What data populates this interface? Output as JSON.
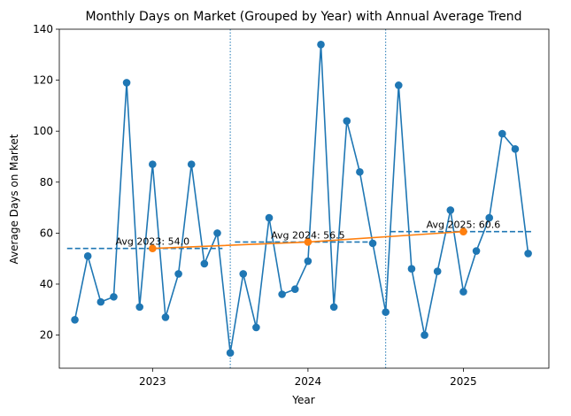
{
  "chart_data": {
    "type": "line",
    "title": "Monthly Days on Market (Grouped by Year) with Annual Average Trend",
    "xlabel": "Year",
    "ylabel": "Average Days on Market",
    "xlim": [
      2022.4,
      2025.55
    ],
    "ylim": [
      7,
      140
    ],
    "yticks": [
      20,
      40,
      60,
      80,
      100,
      120,
      140
    ],
    "xticks": [
      2023,
      2024,
      2025
    ],
    "xtick_labels": [
      "2023",
      "2024",
      "2025"
    ],
    "grid": false,
    "colors": {
      "monthly": "#1f77b4",
      "trend": "#ff7f0e"
    },
    "monthly_series": {
      "x": [
        2022.5,
        2022.5833,
        2022.6667,
        2022.75,
        2022.8333,
        2022.9167,
        2023.0,
        2023.0833,
        2023.1667,
        2023.25,
        2023.3333,
        2023.4167,
        2023.5,
        2023.5833,
        2023.6667,
        2023.75,
        2023.8333,
        2023.9167,
        2024.0,
        2024.0833,
        2024.1667,
        2024.25,
        2024.3333,
        2024.4167,
        2024.5,
        2024.5833,
        2024.6667,
        2024.75,
        2024.8333,
        2024.9167,
        2025.0,
        2025.0833,
        2025.1667,
        2025.25,
        2025.3333,
        2025.4167
      ],
      "values": [
        26,
        51,
        33,
        35,
        119,
        31,
        87,
        27,
        44,
        87,
        48,
        60,
        13,
        44,
        23,
        66,
        36,
        38,
        49,
        134,
        31,
        104,
        84,
        56,
        29,
        118,
        46,
        20,
        45,
        69,
        37,
        53,
        66,
        99,
        93,
        52
      ]
    },
    "annual_averages": [
      {
        "year": 2023,
        "value": 54.0,
        "label": "Avg 2023: 54.0",
        "span": [
          2022.45,
          2023.45
        ]
      },
      {
        "year": 2024,
        "value": 56.5,
        "label": "Avg 2024: 56.5",
        "span": [
          2023.53,
          2024.45
        ]
      },
      {
        "year": 2025,
        "value": 60.6,
        "label": "Avg 2025: 60.6",
        "span": [
          2024.53,
          2025.45
        ]
      }
    ],
    "year_dividers": [
      2023.5,
      2024.5
    ]
  }
}
